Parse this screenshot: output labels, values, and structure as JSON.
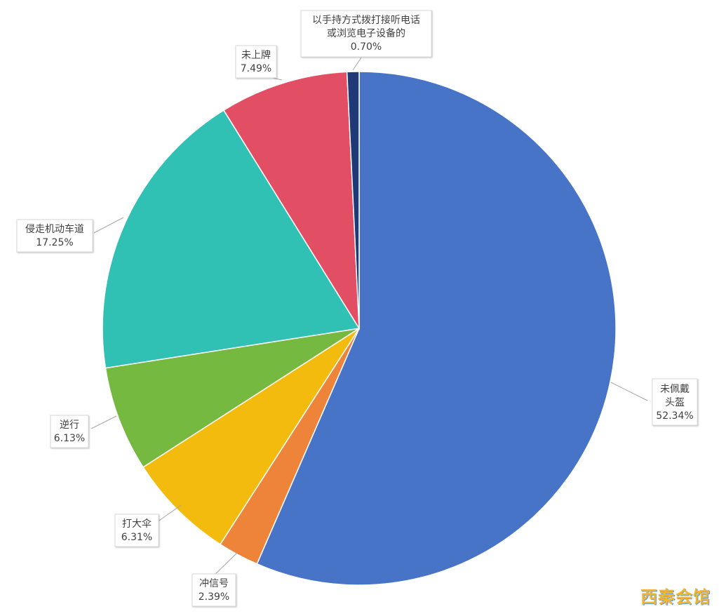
{
  "chart_data": {
    "type": "pie",
    "title": "",
    "slices": [
      {
        "name": "未佩戴头盔",
        "label_lines": [
          "未佩戴",
          "头盔"
        ],
        "value": 52.34,
        "value_text": "52.34%",
        "color": "#4874c8"
      },
      {
        "name": "冲信号",
        "label_lines": [
          "冲信号"
        ],
        "value": 2.39,
        "value_text": "2.39%",
        "color": "#ee833a"
      },
      {
        "name": "打大伞",
        "label_lines": [
          "打大伞"
        ],
        "value": 6.31,
        "value_text": "6.31%",
        "color": "#f2bb0e"
      },
      {
        "name": "逆行",
        "label_lines": [
          "逆行"
        ],
        "value": 6.13,
        "value_text": "6.13%",
        "color": "#76b941"
      },
      {
        "name": "侵走机动车道",
        "label_lines": [
          "侵走机动车道"
        ],
        "value": 17.25,
        "value_text": "17.25%",
        "color": "#30c1b4"
      },
      {
        "name": "未上牌",
        "label_lines": [
          "未上牌"
        ],
        "value": 7.49,
        "value_text": "7.49%",
        "color": "#e24e63"
      },
      {
        "name": "以手持方式拨打接听电话或浏览电子设备的",
        "label_lines": [
          "以手持方式拨打接听电话",
          "或浏览电子设备的"
        ],
        "value": 0.7,
        "value_text": "0.70%",
        "color": "#203a78"
      }
    ],
    "start": "12 o'clock",
    "direction": "clockwise",
    "legend": "none"
  },
  "watermark": {
    "text": "西秦会馆",
    "color": "#f2b632"
  }
}
